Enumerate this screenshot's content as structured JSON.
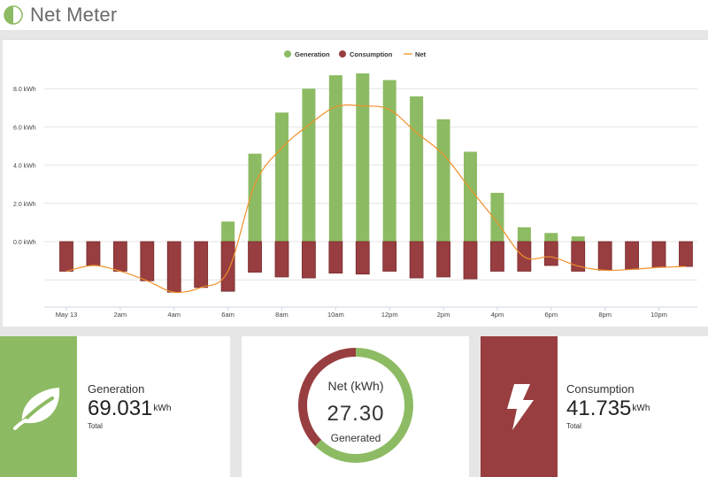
{
  "app": {
    "title": "Net Meter"
  },
  "legend": [
    {
      "label": "Generation",
      "color": "#8dbb63",
      "icon": "circle-marker"
    },
    {
      "label": "Consumption",
      "color": "#983e40",
      "icon": "circle-marker"
    },
    {
      "label": "Net",
      "color": "#f0912a",
      "icon": "line-marker"
    }
  ],
  "chart_data": {
    "type": "bar",
    "title": "",
    "xlabel": "",
    "ylabel": "",
    "legend_position": "top-center",
    "grid": true,
    "ylim": [
      -2.8,
      9.5
    ],
    "y_ticks": [
      {
        "value": 8,
        "label": "8.0 kWh"
      },
      {
        "value": 6,
        "label": "6.0 kWh"
      },
      {
        "value": 4,
        "label": "4.0 kWh"
      },
      {
        "value": 2,
        "label": "2.0 kWh"
      },
      {
        "value": 0,
        "label": "0.0 kWh"
      }
    ],
    "x_ticks": [
      {
        "index": 0,
        "label": "May 13"
      },
      {
        "index": 2,
        "label": "2am"
      },
      {
        "index": 4,
        "label": "4am"
      },
      {
        "index": 6,
        "label": "6am"
      },
      {
        "index": 8,
        "label": "8am"
      },
      {
        "index": 10,
        "label": "10am"
      },
      {
        "index": 12,
        "label": "12pm"
      },
      {
        "index": 14,
        "label": "2pm"
      },
      {
        "index": 16,
        "label": "4pm"
      },
      {
        "index": 18,
        "label": "6pm"
      },
      {
        "index": 20,
        "label": "8pm"
      },
      {
        "index": 22,
        "label": "10pm"
      }
    ],
    "series": [
      {
        "name": "Generation",
        "color": "#8dbb63",
        "values": [
          0,
          0,
          0,
          0,
          0,
          0,
          1.05,
          4.6,
          6.75,
          8.0,
          8.7,
          8.8,
          8.45,
          7.6,
          6.4,
          4.7,
          2.55,
          0.75,
          0.45,
          0.27,
          0,
          0,
          0,
          0
        ]
      },
      {
        "name": "Consumption",
        "color": "#983e40",
        "values": [
          -1.55,
          -1.25,
          -1.55,
          -2.05,
          -2.65,
          -2.4,
          -2.6,
          -1.6,
          -1.85,
          -1.9,
          -1.65,
          -1.7,
          -1.55,
          -1.9,
          -1.85,
          -1.95,
          -1.55,
          -1.55,
          -1.25,
          -1.55,
          -1.5,
          -1.45,
          -1.35,
          -1.3
        ]
      },
      {
        "name": "Net",
        "color": "#f0912a",
        "values": [
          -1.55,
          -1.25,
          -1.55,
          -2.05,
          -2.65,
          -2.4,
          -1.55,
          3.0,
          4.9,
          6.1,
          7.05,
          7.1,
          6.9,
          5.7,
          4.55,
          2.75,
          1.0,
          -0.8,
          -0.8,
          -1.28,
          -1.5,
          -1.45,
          -1.35,
          -1.3
        ]
      }
    ]
  },
  "cards": {
    "generation": {
      "label": "Generation",
      "value": "69.031",
      "unit": "kWh",
      "sub": "Total",
      "icon": "leaf-icon"
    },
    "net": {
      "label": "Net (kWh)",
      "value": "27.30",
      "sub": "Generated",
      "generated_fraction": 0.625
    },
    "consumption": {
      "label": "Consumption",
      "value": "41.735",
      "unit": "kWh",
      "sub": "Total",
      "icon": "lightning-icon"
    }
  }
}
